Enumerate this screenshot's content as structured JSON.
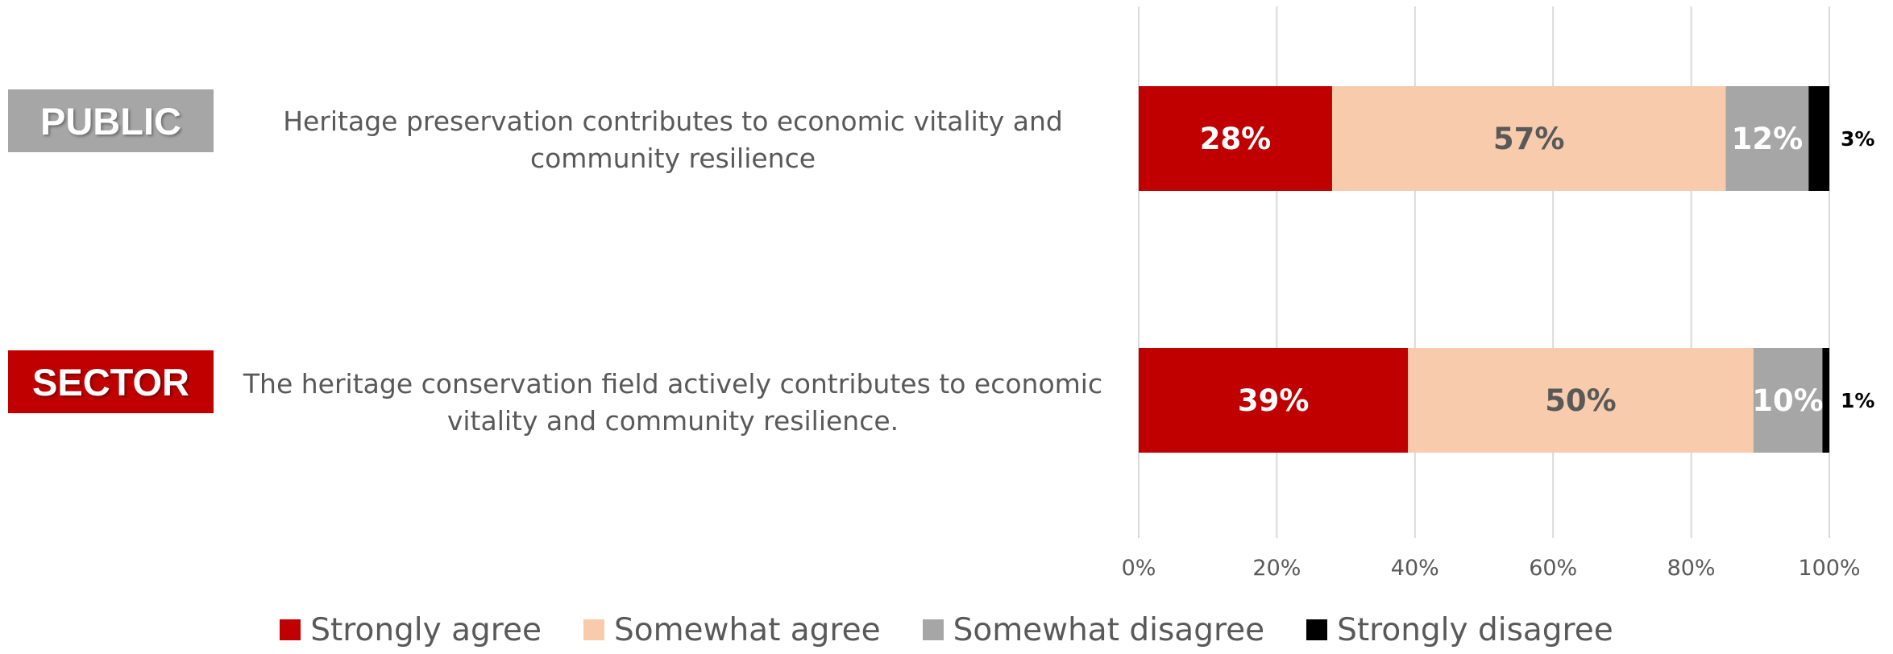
{
  "chart_data": {
    "type": "bar",
    "orientation": "horizontal",
    "stacked": true,
    "xlim": [
      0,
      100
    ],
    "x_ticks": [
      "0%",
      "20%",
      "40%",
      "60%",
      "80%",
      "100%"
    ],
    "grid": true,
    "legend_position": "bottom",
    "categories": [
      {
        "badge": "PUBLIC",
        "badge_color": "#a6a6a6",
        "statement": "Heritage preservation contributes to economic vitality and community resilience"
      },
      {
        "badge": "SECTOR",
        "badge_color": "#c00000",
        "statement": "The heritage conservation field actively contributes to economic vitality and community resilience."
      }
    ],
    "series": [
      {
        "name": "Strongly agree",
        "color": "#c00000",
        "label_color": "#ffffff",
        "values": [
          28,
          39
        ],
        "labels": [
          "28%",
          "39%"
        ]
      },
      {
        "name": "Somewhat agree",
        "color": "#f8cbad",
        "label_color": "#595959",
        "values": [
          57,
          50
        ],
        "labels": [
          "57%",
          "50%"
        ]
      },
      {
        "name": "Somewhat disagree",
        "color": "#a6a6a6",
        "label_color": "#ffffff",
        "values": [
          12,
          10
        ],
        "labels": [
          "12%",
          "10%"
        ]
      },
      {
        "name": "Strongly disagree",
        "color": "#000000",
        "label_color": "#000000",
        "values": [
          3,
          1
        ],
        "labels": [
          "3%",
          "1%"
        ]
      }
    ]
  }
}
